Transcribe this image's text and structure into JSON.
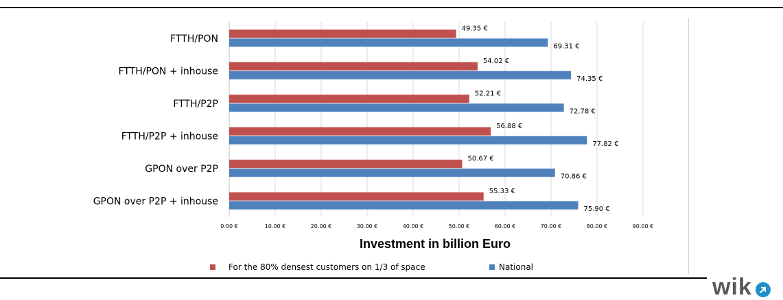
{
  "chart_data": {
    "type": "bar",
    "orientation": "horizontal",
    "categories": [
      "FTTH/PON",
      "FTTH/PON + inhouse",
      "FTTH/P2P",
      "FTTH/P2P + inhouse",
      "GPON over P2P",
      "GPON over P2P + inhouse"
    ],
    "series": [
      {
        "name": "For the 80% densest customers on 1/3 of  space",
        "color": "#c0504d",
        "values": [
          49.35,
          54.02,
          52.21,
          56.88,
          50.67,
          55.33
        ],
        "labels": [
          "49.35 €",
          "54.02 €",
          "52.21 €",
          "56.88 €",
          "50.67 €",
          "55.33 €"
        ]
      },
      {
        "name": "National",
        "color": "#4f81bd",
        "values": [
          69.31,
          74.35,
          72.78,
          77.82,
          70.86,
          75.9
        ],
        "labels": [
          "69.31 €",
          "74.35 €",
          "72.78 €",
          "77.82 €",
          "70.86 €",
          "75.90 €"
        ]
      }
    ],
    "xlim": [
      0,
      90
    ],
    "xticks": [
      0,
      10,
      20,
      30,
      40,
      50,
      60,
      70,
      80,
      90
    ],
    "xtick_labels": [
      "0.00 €",
      "10.00 €",
      "20.00 €",
      "30.00 €",
      "40.00 €",
      "50.00 €",
      "60.00 €",
      "70.00 €",
      "80.00 €",
      "90.00 €"
    ],
    "xlabel": "Investment in billion Euro",
    "ylabel": "",
    "title": "",
    "grid": "vertical",
    "legend_position": "bottom"
  },
  "legend": {
    "items": [
      {
        "label": "For the 80% densest customers on 1/3 of  space",
        "color": "#c0504d"
      },
      {
        "label": "National",
        "color": "#4f81bd"
      }
    ]
  },
  "logo": {
    "text": "wik",
    "mark_icon": "arrow-circle-icon",
    "mark_color": "#1e90c8"
  }
}
